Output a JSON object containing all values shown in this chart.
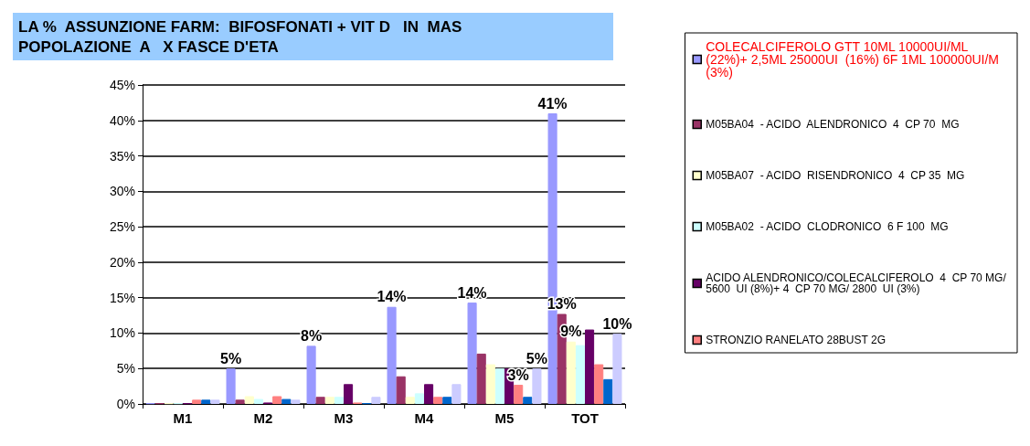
{
  "chart_data": {
    "type": "bar",
    "title": "LA %  ASSUNZIONE FARM:  BIFOSFONATI + VIT D   IN  MAS\nPOPOLAZIONE  A   X FASCE D'ETA",
    "categories": [
      "M1",
      "M2",
      "M3",
      "M4",
      "M5",
      "TOT"
    ],
    "series": [
      {
        "name": "COLECALCIFEROLO GTT 10ML 10000UI/ML (22%)+ 2,5ML 25000UI  (16%) 6F 1ML 100000UI/M (3%)",
        "color": "#9999ff",
        "values": [
          0.1,
          5.0,
          8.2,
          13.7,
          14.3,
          41.0
        ],
        "value_labels": [
          null,
          "5%",
          "8%",
          "14%",
          "14%",
          "41%"
        ]
      },
      {
        "name": "M05BA04  - ACIDO  ALENDRONICO  4  CP 70  MG",
        "color": "#993366",
        "values": [
          0.1,
          0.6,
          1.0,
          3.9,
          7.1,
          12.7
        ],
        "value_labels": [
          null,
          null,
          null,
          null,
          null,
          "13%"
        ]
      },
      {
        "name": "M05BA07  - ACIDO  RISENDRONICO  4  CP 35  MG",
        "color": "#ffffcc",
        "values": [
          0.1,
          1.1,
          1.0,
          1.0,
          5.6,
          8.8
        ],
        "value_labels": [
          null,
          null,
          null,
          null,
          null,
          "9%"
        ]
      },
      {
        "name": "M05BA02  - ACIDO  CLODRONICO  6 F 100  MG",
        "color": "#ccffff",
        "values": [
          0.1,
          0.7,
          1.0,
          1.5,
          5.0,
          8.3
        ]
      },
      {
        "name": "ACIDO ALENDRONICO/COLECALCIFEROLO  4  CP 70 MG/ 5600  UI (8%)+ 4  CP 70 MG/ 2800  UI (3%)",
        "color": "#660066",
        "values": [
          0.1,
          0.2,
          2.8,
          2.8,
          5.0,
          10.5
        ]
      },
      {
        "name": "STRONZIO RANELATO 28BUST 2G",
        "color": "#ff8080",
        "values": [
          0.6,
          1.1,
          0.2,
          1.0,
          2.7,
          5.6
        ],
        "value_labels": [
          null,
          null,
          null,
          null,
          "3%",
          null
        ]
      },
      {
        "color": "#0066cc",
        "values": [
          0.6,
          0.7,
          0.1,
          1.0,
          1.0,
          3.5
        ]
      },
      {
        "color": "#ccccff",
        "values": [
          0.6,
          0.6,
          1.0,
          2.8,
          5.0,
          9.9
        ],
        "value_labels": [
          null,
          null,
          null,
          null,
          "5%",
          "10%"
        ]
      }
    ],
    "ylim": [
      0,
      45
    ],
    "yticks": [
      {
        "value": 0,
        "label": "0%"
      },
      {
        "value": 5,
        "label": "5%"
      },
      {
        "value": 10,
        "label": "10%"
      },
      {
        "value": 15,
        "label": "15%"
      },
      {
        "value": 20,
        "label": "20%"
      },
      {
        "value": 25,
        "label": "25%"
      },
      {
        "value": 30,
        "label": "30%"
      },
      {
        "value": 35,
        "label": "35%"
      },
      {
        "value": 40,
        "label": "40%"
      },
      {
        "value": 45,
        "label": "45%"
      }
    ],
    "grid": "y",
    "legend": "right"
  }
}
